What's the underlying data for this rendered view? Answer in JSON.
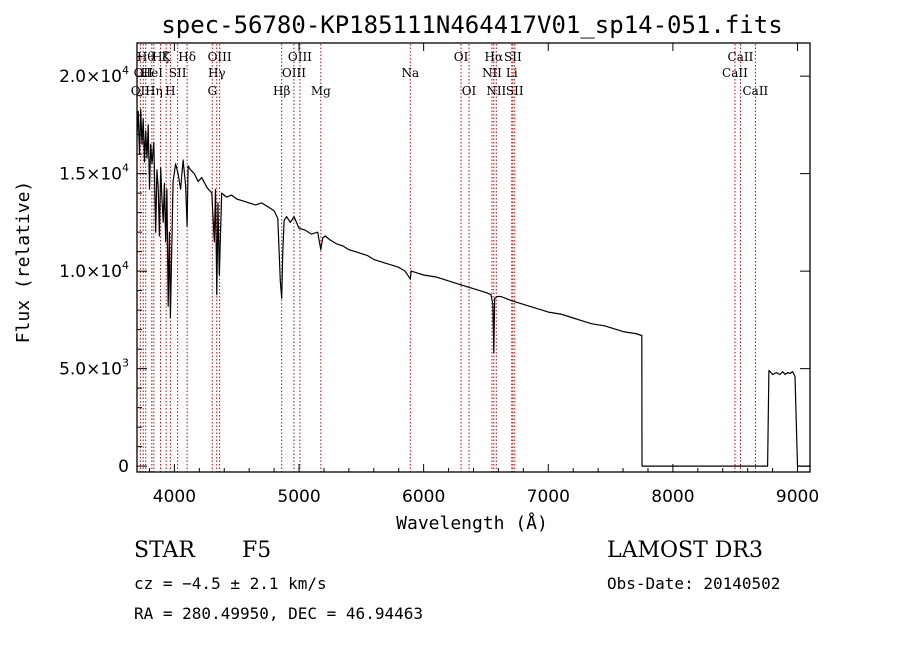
{
  "chart_data": {
    "type": "line",
    "title": "spec-56780-KP185111N464417V01_sp14-051.fits",
    "xlabel": "Wavelength (Å)",
    "ylabel": "Flux (relative)",
    "xlim": [
      3700,
      9100
    ],
    "ylim": [
      -300,
      21700
    ],
    "x_ticks": [
      4000,
      5000,
      6000,
      7000,
      8000,
      9000
    ],
    "x_tick_labels": [
      "4000",
      "5000",
      "6000",
      "7000",
      "8000",
      "9000"
    ],
    "y_ticks": [
      {
        "value": 0,
        "mant": "0",
        "exp": ""
      },
      {
        "value": 5000,
        "mant": "5.0×10",
        "exp": "3"
      },
      {
        "value": 10000,
        "mant": "1.0×10",
        "exp": "4"
      },
      {
        "value": 15000,
        "mant": "1.5×10",
        "exp": "4"
      },
      {
        "value": 20000,
        "mant": "2.0×10",
        "exp": "4"
      }
    ],
    "series": [
      {
        "name": "flux",
        "color": "#000000",
        "x": [
          3700,
          3710,
          3720,
          3730,
          3740,
          3750,
          3760,
          3770,
          3780,
          3790,
          3800,
          3810,
          3820,
          3835,
          3850,
          3860,
          3870,
          3880,
          3890,
          3900,
          3910,
          3920,
          3930,
          3940,
          3950,
          3960,
          3968,
          3975,
          3990,
          4010,
          4030,
          4050,
          4070,
          4090,
          4102,
          4110,
          4130,
          4160,
          4190,
          4220,
          4260,
          4300,
          4320,
          4330,
          4340,
          4350,
          4360,
          4380,
          4420,
          4460,
          4500,
          4550,
          4600,
          4650,
          4700,
          4750,
          4800,
          4830,
          4850,
          4861,
          4870,
          4880,
          4900,
          4930,
          4960,
          5000,
          5050,
          5100,
          5150,
          5175,
          5190,
          5210,
          5250,
          5300,
          5350,
          5400,
          5450,
          5500,
          5550,
          5600,
          5650,
          5700,
          5750,
          5800,
          5850,
          5893,
          5900,
          5950,
          6000,
          6050,
          6100,
          6150,
          6200,
          6250,
          6300,
          6350,
          6400,
          6450,
          6500,
          6540,
          6556,
          6563,
          6570,
          6590,
          6620,
          6660,
          6700,
          6750,
          6800,
          6850,
          6900,
          6950,
          7000,
          7050,
          7100,
          7150,
          7200,
          7250,
          7300,
          7350,
          7400,
          7450,
          7500,
          7550,
          7600,
          7650,
          7700,
          7750,
          7752,
          7760,
          7800,
          7900,
          8000,
          8100,
          8200,
          8300,
          8400,
          8500,
          8600,
          8700,
          8760,
          8770,
          8780,
          8800,
          8830,
          8860,
          8880,
          8900,
          8920,
          8940,
          8960,
          8980,
          9000,
          9010,
          9100
        ],
        "values": [
          17000,
          18200,
          16000,
          18300,
          16500,
          17800,
          15600,
          17200,
          15800,
          17500,
          14200,
          16500,
          15500,
          16600,
          12000,
          15200,
          14300,
          11800,
          15300,
          13800,
          12500,
          14500,
          11500,
          14200,
          8200,
          12000,
          7600,
          10000,
          14600,
          15500,
          15000,
          14200,
          15700,
          14400,
          12300,
          15400,
          15200,
          15000,
          14600,
          14800,
          14300,
          14000,
          11500,
          14200,
          8800,
          13500,
          9800,
          14000,
          13800,
          13900,
          13700,
          13600,
          13500,
          13400,
          13500,
          13300,
          13100,
          12700,
          9500,
          8600,
          11000,
          12600,
          12800,
          12500,
          12800,
          12200,
          12100,
          11900,
          12000,
          11100,
          11700,
          11800,
          11600,
          11400,
          11300,
          11100,
          11000,
          10900,
          10800,
          10600,
          10500,
          10400,
          10300,
          10200,
          10000,
          9600,
          10000,
          9900,
          9800,
          9750,
          9700,
          9600,
          9500,
          9400,
          9300,
          9200,
          9100,
          9000,
          8900,
          8800,
          8300,
          5800,
          8600,
          8700,
          8700,
          8600,
          8500,
          8400,
          8300,
          8200,
          8100,
          8000,
          7900,
          7850,
          7800,
          7700,
          7600,
          7500,
          7400,
          7300,
          7250,
          7200,
          7100,
          7000,
          6900,
          6850,
          6800,
          6700,
          0,
          0,
          0,
          0,
          0,
          0,
          0,
          0,
          0,
          0,
          0,
          0,
          0,
          4900,
          4850,
          4700,
          4800,
          4700,
          4850,
          4700,
          4800,
          4750,
          4850,
          4600,
          0,
          0,
          0
        ]
      }
    ],
    "spectral_lines": [
      {
        "wl": 3727,
        "label": "OII",
        "row": 2
      },
      {
        "wl": 3750,
        "label": "OII",
        "row": 1
      },
      {
        "wl": 3770,
        "label": "Hθ",
        "row": 0
      },
      {
        "wl": 3819,
        "label": "HeI",
        "row": 1
      },
      {
        "wl": 3835,
        "label": "Hη",
        "row": 2
      },
      {
        "wl": 3889,
        "label": "Hζ",
        "row": 0
      },
      {
        "wl": 3934,
        "label": "K",
        "row": 0
      },
      {
        "wl": 3968,
        "label": "H",
        "row": 2
      },
      {
        "wl": 4026,
        "label": "SII",
        "row": 1
      },
      {
        "wl": 4102,
        "label": "Hδ",
        "row": 0
      },
      {
        "wl": 4304,
        "label": "G",
        "row": 2
      },
      {
        "wl": 4340,
        "label": "Hγ",
        "row": 1
      },
      {
        "wl": 4363,
        "label": "OIII",
        "row": 0
      },
      {
        "wl": 4861,
        "label": "Hβ",
        "row": 2
      },
      {
        "wl": 4959,
        "label": "OIII",
        "row": 1
      },
      {
        "wl": 5007,
        "label": "OIII",
        "row": 0
      },
      {
        "wl": 5175,
        "label": "Mg",
        "row": 2
      },
      {
        "wl": 5893,
        "label": "Na",
        "row": 1
      },
      {
        "wl": 6300,
        "label": "OI",
        "row": 0
      },
      {
        "wl": 6364,
        "label": "OI",
        "row": 2
      },
      {
        "wl": 6548,
        "label": "NII",
        "row": 1
      },
      {
        "wl": 6563,
        "label": "Hα",
        "row": 0
      },
      {
        "wl": 6583,
        "label": "NII",
        "row": 2
      },
      {
        "wl": 6707,
        "label": "Li",
        "row": 1
      },
      {
        "wl": 6716,
        "label": "SII",
        "row": 0
      },
      {
        "wl": 6731,
        "label": "SII",
        "row": 2
      },
      {
        "wl": 8498,
        "label": "CaII",
        "row": 1
      },
      {
        "wl": 8542,
        "label": "CaII",
        "row": 0
      },
      {
        "wl": 8662,
        "label": "CaII",
        "row": 2
      }
    ]
  },
  "info": {
    "object_class": "STAR",
    "subclass": "F5",
    "survey": "LAMOST DR3",
    "cz": "cz = −4.5 ± 2.1 km/s",
    "obs_date": "Obs-Date: 20140502",
    "coords": "RA = 280.49950, DEC =  46.94463"
  },
  "colors": {
    "line_marker": "#cc0000",
    "flux": "#000000",
    "background": "#ffffff"
  }
}
